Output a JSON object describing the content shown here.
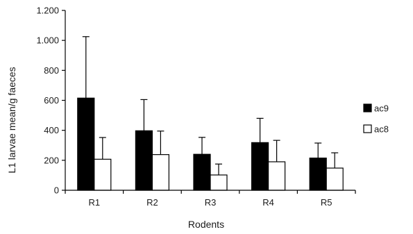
{
  "chart_data": {
    "type": "bar",
    "xlabel": "Rodents",
    "ylabel": "L1 larvae mean/g faeces",
    "ylim": [
      0,
      1200
    ],
    "yticks": [
      0,
      200,
      400,
      600,
      800,
      1000,
      1200
    ],
    "ytick_labels": [
      "0",
      "200",
      "400",
      "600",
      "800",
      "1.000",
      "1.200"
    ],
    "categories": [
      "R1",
      "R2",
      "R3",
      "R4",
      "R5"
    ],
    "series": [
      {
        "name": "ac9",
        "color": "#000000",
        "values": [
          615,
          397,
          240,
          318,
          215
        ],
        "error_upper": [
          1025,
          605,
          353,
          480,
          315
        ]
      },
      {
        "name": "ac8",
        "color": "#ffffff",
        "values": [
          207,
          238,
          102,
          190,
          148
        ],
        "error_upper": [
          352,
          395,
          175,
          333,
          250
        ]
      }
    ],
    "grid": false,
    "legend_position": "right",
    "error_bars": "upper only"
  }
}
